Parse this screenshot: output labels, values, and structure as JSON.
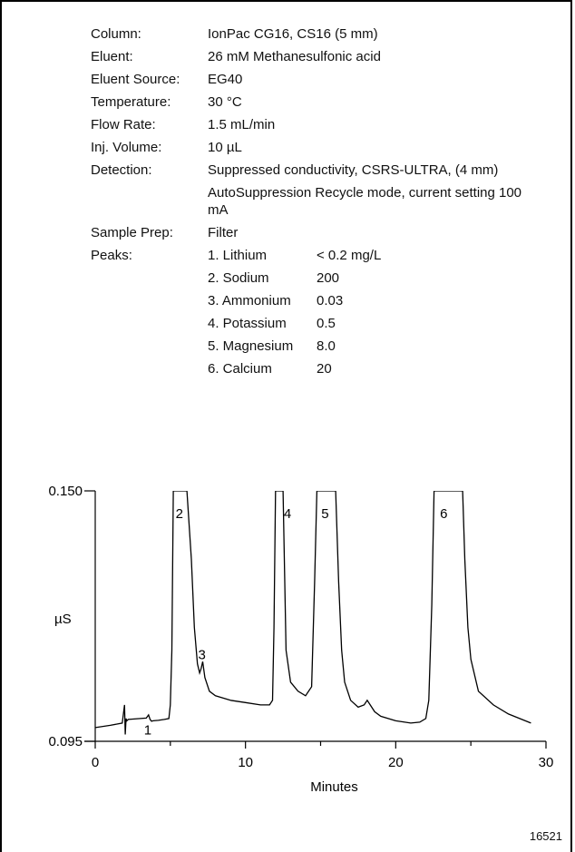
{
  "conditions": [
    {
      "label": "Column:",
      "value": "IonPac CG16, CS16 (5 mm)"
    },
    {
      "label": "Eluent:",
      "value": "26 mM Methanesulfonic acid"
    },
    {
      "label": "Eluent Source:",
      "value": "EG40"
    },
    {
      "label": "Temperature:",
      "value": "30 °C"
    },
    {
      "label": "Flow Rate:",
      "value": "1.5 mL/min"
    },
    {
      "label": "Inj. Volume:",
      "value": "10 µL"
    },
    {
      "label": "Detection:",
      "value": "Suppressed conductivity, CSRS-ULTRA, (4 mm)"
    },
    {
      "label": "",
      "value": "AutoSuppression Recycle mode, current setting 100 mA"
    },
    {
      "label": "Sample Prep:",
      "value": "Filter"
    }
  ],
  "peaks_label": "Peaks:",
  "peaks": [
    {
      "name": "1. Lithium",
      "conc": "< 0.2 mg/L"
    },
    {
      "name": "2. Sodium",
      "conc": "200"
    },
    {
      "name": "3. Ammonium",
      "conc": "0.03"
    },
    {
      "name": "4. Potassium",
      "conc": "0.5"
    },
    {
      "name": "5. Magnesium",
      "conc": "8.0"
    },
    {
      "name": "6. Calcium",
      "conc": "20"
    }
  ],
  "figure_id": "16521",
  "chart_data": {
    "type": "line",
    "xlabel": "Minutes",
    "ylabel": "µS",
    "xlim": [
      0,
      30
    ],
    "ylim": [
      0.095,
      0.15
    ],
    "xticks": [
      "0",
      "10",
      "20",
      "30"
    ],
    "yticks": [
      "0.095",
      "0.150"
    ],
    "peak_labels": [
      {
        "label": "1",
        "x": 3.5,
        "y": 0.1005
      },
      {
        "label": "2",
        "x": 5.6,
        "y": 0.148
      },
      {
        "label": "3",
        "x": 7.1,
        "y": 0.117
      },
      {
        "label": "4",
        "x": 12.8,
        "y": 0.148
      },
      {
        "label": "5",
        "x": 15.3,
        "y": 0.148
      },
      {
        "label": "6",
        "x": 23.2,
        "y": 0.148
      }
    ],
    "series": [
      {
        "x": [
          0.0,
          1.0,
          1.8,
          1.95,
          2.0,
          2.05,
          2.1,
          2.2,
          2.6,
          3.0,
          3.4,
          3.55,
          3.65,
          3.75,
          3.85,
          4.2,
          4.6,
          4.9,
          5.0,
          5.1,
          5.2,
          5.35,
          5.5,
          5.65,
          5.8,
          6.1,
          6.4,
          6.6,
          6.8,
          6.95,
          7.05,
          7.15,
          7.3,
          7.6,
          8.0,
          9.0,
          10.0,
          11.0,
          11.6,
          11.8,
          11.9,
          12.0,
          12.1,
          12.3,
          12.5,
          12.7,
          13.0,
          13.5,
          14.0,
          14.4,
          14.6,
          14.75,
          14.85,
          15.0,
          15.5,
          16.0,
          16.2,
          16.4,
          16.6,
          17.0,
          17.5,
          17.9,
          18.1,
          18.3,
          18.6,
          19.0,
          20.0,
          21.0,
          21.6,
          22.0,
          22.2,
          22.4,
          22.55,
          23.0,
          24.0,
          24.45,
          24.6,
          24.8,
          25.0,
          25.5,
          26.5,
          27.5,
          29.0
        ],
        "y": [
          0.098,
          0.0985,
          0.099,
          0.103,
          0.0965,
          0.1,
          0.0995,
          0.0998,
          0.0999,
          0.1,
          0.1001,
          0.1008,
          0.0998,
          0.0994,
          0.0995,
          0.0996,
          0.0998,
          0.1,
          0.103,
          0.115,
          0.15,
          0.15,
          0.15,
          0.15,
          0.15,
          0.15,
          0.135,
          0.12,
          0.112,
          0.11,
          0.111,
          0.1125,
          0.109,
          0.106,
          0.105,
          0.104,
          0.1035,
          0.103,
          0.103,
          0.104,
          0.12,
          0.15,
          0.15,
          0.15,
          0.15,
          0.115,
          0.108,
          0.106,
          0.105,
          0.107,
          0.13,
          0.15,
          0.15,
          0.15,
          0.15,
          0.15,
          0.13,
          0.115,
          0.108,
          0.104,
          0.1025,
          0.103,
          0.104,
          0.103,
          0.1015,
          0.1005,
          0.0995,
          0.099,
          0.0992,
          0.1,
          0.104,
          0.125,
          0.15,
          0.15,
          0.15,
          0.15,
          0.135,
          0.12,
          0.113,
          0.106,
          0.103,
          0.101,
          0.099
        ]
      }
    ]
  }
}
